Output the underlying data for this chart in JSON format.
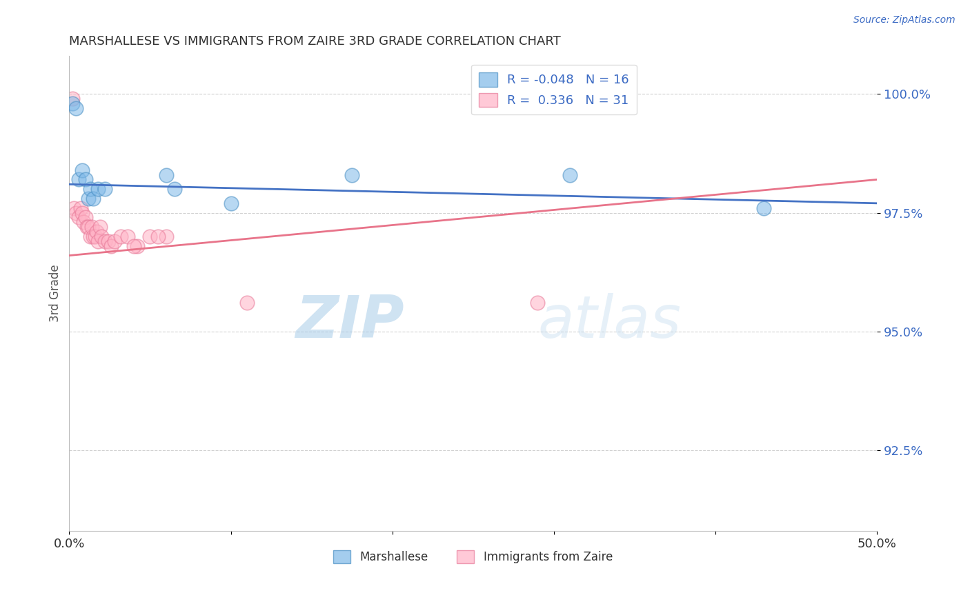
{
  "title": "MARSHALLESE VS IMMIGRANTS FROM ZAIRE 3RD GRADE CORRELATION CHART",
  "source": "Source: ZipAtlas.com",
  "ylabel": "3rd Grade",
  "xlim": [
    0.0,
    0.5
  ],
  "ylim": [
    0.908,
    1.008
  ],
  "xticks": [
    0.0,
    0.1,
    0.2,
    0.3,
    0.4,
    0.5
  ],
  "xtick_labels": [
    "0.0%",
    "",
    "",
    "",
    "",
    "50.0%"
  ],
  "ytick_vals": [
    0.925,
    0.95,
    0.975,
    1.0
  ],
  "ytick_labels": [
    "92.5%",
    "95.0%",
    "97.5%",
    "100.0%"
  ],
  "legend1_label": "Marshallese",
  "legend2_label": "Immigrants from Zaire",
  "R_blue": -0.048,
  "N_blue": 16,
  "R_pink": 0.336,
  "N_pink": 31,
  "blue_color": "#7EB8E8",
  "pink_color": "#FFB3C6",
  "blue_edge_color": "#4A90C4",
  "pink_edge_color": "#E87A99",
  "blue_line_color": "#4472C4",
  "pink_line_color": "#E8748A",
  "watermark_zip": "ZIP",
  "watermark_atlas": "atlas",
  "grid_color": "#CCCCCC",
  "background_color": "#FFFFFF",
  "blue_points_x": [
    0.002,
    0.004,
    0.006,
    0.008,
    0.01,
    0.012,
    0.013,
    0.015,
    0.018,
    0.022,
    0.06,
    0.065,
    0.1,
    0.175,
    0.31,
    0.43
  ],
  "blue_points_y": [
    0.998,
    0.997,
    0.982,
    0.984,
    0.982,
    0.978,
    0.98,
    0.978,
    0.98,
    0.98,
    0.983,
    0.98,
    0.977,
    0.983,
    0.983,
    0.976
  ],
  "pink_points_x": [
    0.002,
    0.003,
    0.004,
    0.006,
    0.007,
    0.008,
    0.009,
    0.01,
    0.011,
    0.012,
    0.013,
    0.014,
    0.015,
    0.016,
    0.017,
    0.018,
    0.019,
    0.02,
    0.022,
    0.024,
    0.026,
    0.028,
    0.032,
    0.036,
    0.05,
    0.06,
    0.11,
    0.042,
    0.055,
    0.29,
    0.04
  ],
  "pink_points_y": [
    0.999,
    0.976,
    0.975,
    0.974,
    0.976,
    0.975,
    0.973,
    0.974,
    0.972,
    0.972,
    0.97,
    0.972,
    0.97,
    0.97,
    0.971,
    0.969,
    0.972,
    0.97,
    0.969,
    0.969,
    0.968,
    0.969,
    0.97,
    0.97,
    0.97,
    0.97,
    0.956,
    0.968,
    0.97,
    0.956,
    0.968
  ]
}
